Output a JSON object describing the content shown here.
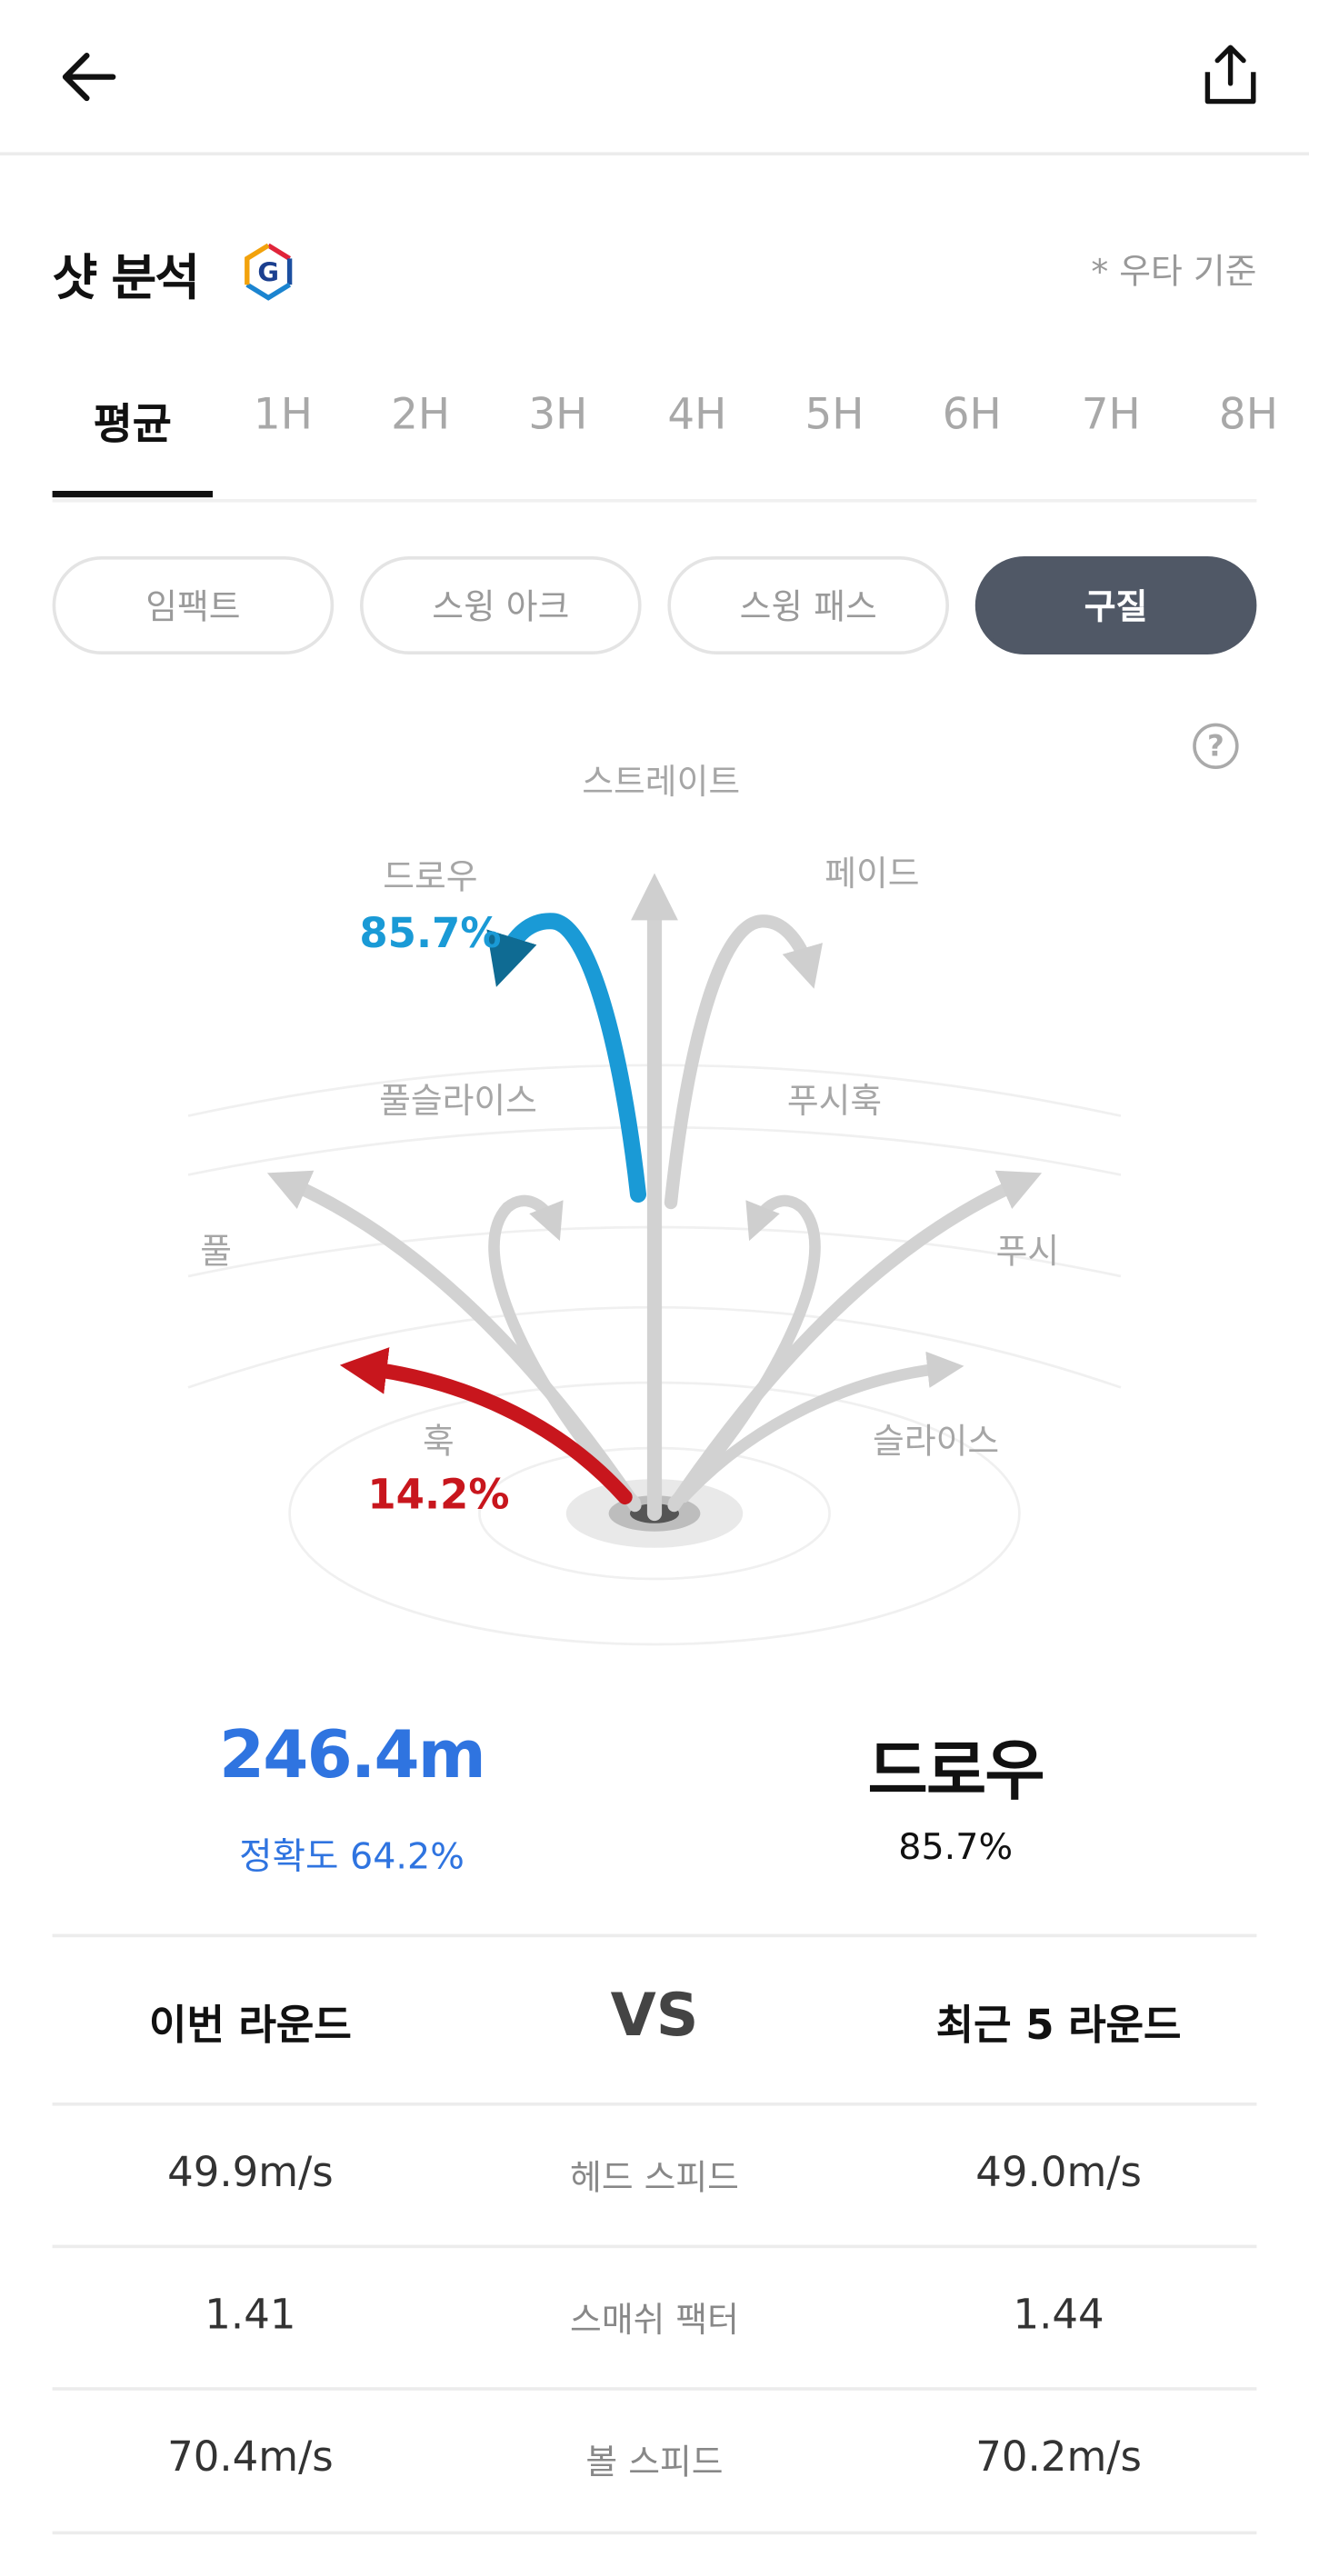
{
  "header": {
    "back_icon": "arrow-left-icon",
    "share_icon": "share-icon"
  },
  "title": "샷 분석",
  "badge_letter": "G",
  "basis_note": "* 우타 기준",
  "tabs": [
    "평균",
    "1H",
    "2H",
    "3H",
    "4H",
    "5H",
    "6H",
    "7H",
    "8H"
  ],
  "active_tab": "평균",
  "segments": [
    "임팩트",
    "스윙 아크",
    "스윙 패스",
    "구질"
  ],
  "active_segment": "구질",
  "help_icon": "?",
  "shot_shape": {
    "labels": {
      "straight": "스트레이트",
      "draw": "드로우",
      "fade": "페이드",
      "pull_slice": "풀슬라이스",
      "push_hook": "푸시훅",
      "pull": "풀",
      "push": "푸시",
      "hook": "훅",
      "slice": "슬라이스"
    },
    "draw_pct": "85.7%",
    "hook_pct": "14.2%",
    "colors": {
      "draw": "#1a9ad6",
      "draw_head": "#0f6b93",
      "hook": "#c8161d",
      "inactive": "#d0d0d0"
    }
  },
  "summary": {
    "distance": "246.4m",
    "accuracy": "정확도 64.2%",
    "shape": "드로우",
    "shape_pct": "85.7%",
    "accent": "#2f74e0"
  },
  "compare": {
    "left_head": "이번 라운드",
    "vs": "VS",
    "right_head": "최근 5 라운드",
    "rows": [
      {
        "left": "49.9m/s",
        "metric": "헤드 스피드",
        "right": "49.0m/s"
      },
      {
        "left": "1.41",
        "metric": "스매쉬 팩터",
        "right": "1.44"
      },
      {
        "left": "70.4m/s",
        "metric": "볼 스피드",
        "right": "70.2m/s"
      }
    ]
  }
}
